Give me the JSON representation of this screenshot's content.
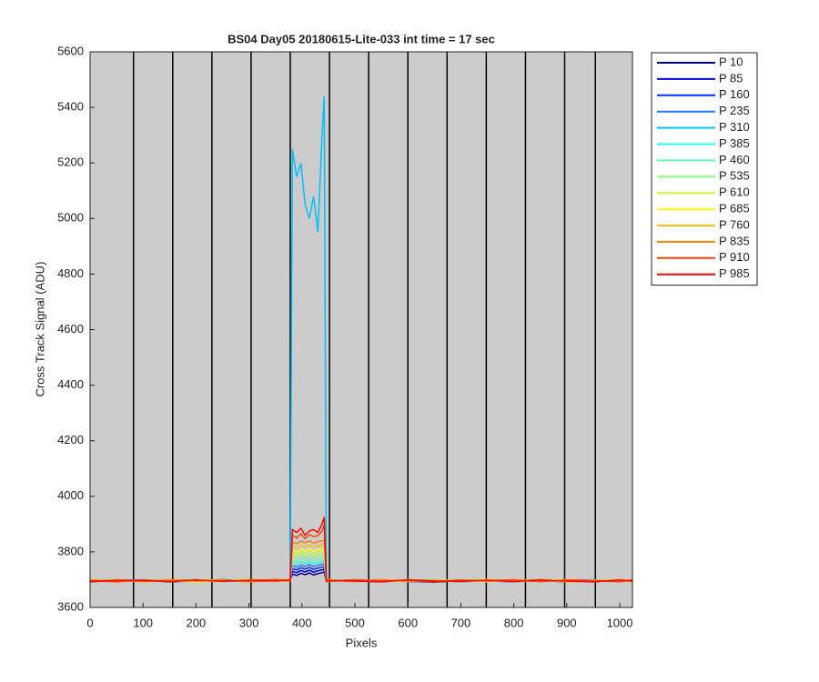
{
  "chart_data": {
    "type": "line",
    "title": "BS04 Day05 20180615-Lite-033 int time = 17 sec",
    "xlabel": "Pixels",
    "ylabel": "Cross Track Signal (ADU)",
    "x": [
      0,
      50,
      100,
      150,
      200,
      250,
      300,
      350,
      378,
      382,
      390,
      398,
      406,
      414,
      422,
      430,
      438,
      442,
      446,
      500,
      550,
      600,
      650,
      700,
      750,
      800,
      850,
      900,
      950,
      1000,
      1024
    ],
    "xlim": [
      0,
      1024
    ],
    "xticks": [
      0,
      100,
      200,
      300,
      400,
      500,
      600,
      700,
      800,
      900,
      1000
    ],
    "ylim": [
      3600,
      5600
    ],
    "yticks": [
      3600,
      3800,
      4000,
      4200,
      4400,
      4600,
      4800,
      5000,
      5200,
      5400,
      5600
    ],
    "vertical_lines": [
      82,
      156,
      230,
      304,
      378,
      452,
      526,
      600,
      674,
      748,
      822,
      896,
      954
    ],
    "background": "#cccccc",
    "legend": "outside-right",
    "series": [
      {
        "name": "P 10",
        "color": "#00008f",
        "values": [
          3697,
          3694,
          3699,
          3692,
          3696,
          3700,
          3695,
          3698,
          3700,
          3720,
          3715,
          3723,
          3718,
          3724,
          3717,
          3722,
          3725,
          3728,
          3696,
          3693,
          3698,
          3695,
          3691,
          3697,
          3699,
          3694,
          3696,
          3692,
          3698,
          3695,
          3697
        ]
      },
      {
        "name": "P 85",
        "color": "#0000df",
        "values": [
          3695,
          3698,
          3693,
          3697,
          3700,
          3694,
          3699,
          3696,
          3698,
          3730,
          3725,
          3733,
          3728,
          3734,
          3727,
          3732,
          3735,
          3738,
          3694,
          3697,
          3692,
          3699,
          3696,
          3693,
          3698,
          3695,
          3700,
          3694,
          3696,
          3699,
          3693
        ]
      },
      {
        "name": "P 160",
        "color": "#0030ff",
        "values": [
          3699,
          3693,
          3697,
          3695,
          3692,
          3698,
          3694,
          3700,
          3697,
          3740,
          3735,
          3743,
          3738,
          3744,
          3737,
          3742,
          3745,
          3748,
          3698,
          3695,
          3699,
          3692,
          3697,
          3694,
          3696,
          3700,
          3693,
          3697,
          3694,
          3698,
          3696
        ]
      },
      {
        "name": "P 235",
        "color": "#1f78ff",
        "values": [
          3694,
          3697,
          3700,
          3693,
          3698,
          3695,
          3697,
          3693,
          3699,
          3750,
          3745,
          3753,
          3748,
          3754,
          3747,
          3752,
          3755,
          3758,
          3695,
          3700,
          3694,
          3697,
          3693,
          3699,
          3695,
          3692,
          3698,
          3696,
          3700,
          3694,
          3698
        ]
      },
      {
        "name": "P 310",
        "color": "#00bfff",
        "values": [
          3698,
          3695,
          3694,
          3699,
          3693,
          3697,
          3700,
          3696,
          3700,
          5250,
          5150,
          5200,
          5050,
          5000,
          5080,
          4950,
          5300,
          5440,
          3697,
          3694,
          3696,
          3700,
          3698,
          3692,
          3697,
          3696,
          3694,
          3699,
          3693,
          3697,
          3695
        ]
      },
      {
        "name": "P 385",
        "color": "#20ffee",
        "values": [
          3696,
          3700,
          3695,
          3694,
          3699,
          3692,
          3696,
          3699,
          3696,
          3760,
          3755,
          3763,
          3758,
          3764,
          3757,
          3762,
          3765,
          3768,
          3693,
          3698,
          3697,
          3694,
          3700,
          3695,
          3693,
          3698,
          3697,
          3695,
          3699,
          3693,
          3696
        ]
      },
      {
        "name": "P 460",
        "color": "#60ffb0",
        "values": [
          3693,
          3696,
          3698,
          3700,
          3694,
          3697,
          3693,
          3695,
          3698,
          3770,
          3765,
          3773,
          3768,
          3774,
          3767,
          3772,
          3775,
          3778,
          3699,
          3696,
          3693,
          3698,
          3694,
          3700,
          3696,
          3694,
          3699,
          3693,
          3697,
          3700,
          3694
        ]
      },
      {
        "name": "P 535",
        "color": "#90ff70",
        "values": [
          3700,
          3692,
          3696,
          3698,
          3697,
          3693,
          3699,
          3694,
          3697,
          3785,
          3780,
          3788,
          3783,
          3789,
          3782,
          3787,
          3790,
          3793,
          3696,
          3692,
          3700,
          3696,
          3697,
          3694,
          3699,
          3697,
          3692,
          3698,
          3695,
          3693,
          3699
        ]
      },
      {
        "name": "P 610",
        "color": "#c8ff30",
        "values": [
          3695,
          3699,
          3692,
          3696,
          3700,
          3698,
          3694,
          3697,
          3699,
          3795,
          3790,
          3798,
          3793,
          3799,
          3792,
          3797,
          3800,
          3803,
          3694,
          3699,
          3695,
          3693,
          3699,
          3697,
          3692,
          3700,
          3696,
          3694,
          3698,
          3696,
          3692
        ]
      },
      {
        "name": "P 685",
        "color": "#ffff00",
        "values": [
          3697,
          3693,
          3698,
          3695,
          3692,
          3696,
          3700,
          3693,
          3696,
          3805,
          3800,
          3808,
          3803,
          3809,
          3802,
          3807,
          3810,
          3813,
          3700,
          3694,
          3697,
          3699,
          3693,
          3696,
          3700,
          3693,
          3698,
          3700,
          3694,
          3697,
          3698
        ]
      },
      {
        "name": "P 760",
        "color": "#ffc000",
        "values": [
          3694,
          3700,
          3695,
          3697,
          3698,
          3693,
          3696,
          3699,
          3700,
          3820,
          3815,
          3823,
          3818,
          3824,
          3817,
          3822,
          3825,
          3828,
          3695,
          3697,
          3693,
          3700,
          3696,
          3698,
          3694,
          3695,
          3700,
          3692,
          3696,
          3699,
          3694
        ]
      },
      {
        "name": "P 835",
        "color": "#ff8000",
        "values": [
          3699,
          3696,
          3693,
          3700,
          3695,
          3699,
          3692,
          3697,
          3695,
          3835,
          3830,
          3838,
          3833,
          3839,
          3832,
          3837,
          3840,
          3843,
          3697,
          3693,
          3700,
          3694,
          3698,
          3693,
          3697,
          3699,
          3695,
          3697,
          3693,
          3700,
          3696
        ]
      },
      {
        "name": "P 910",
        "color": "#ff4000",
        "values": [
          3696,
          3692,
          3699,
          3694,
          3697,
          3695,
          3698,
          3700,
          3697,
          3860,
          3850,
          3865,
          3848,
          3862,
          3855,
          3858,
          3875,
          3895,
          3693,
          3699,
          3696,
          3697,
          3692,
          3699,
          3695,
          3698,
          3693,
          3699,
          3697,
          3692,
          3700
        ]
      },
      {
        "name": "P 985",
        "color": "#ff0000",
        "values": [
          3692,
          3698,
          3696,
          3693,
          3699,
          3694,
          3697,
          3695,
          3698,
          3880,
          3870,
          3885,
          3860,
          3875,
          3880,
          3870,
          3900,
          3925,
          3698,
          3695,
          3692,
          3699,
          3695,
          3694,
          3698,
          3693,
          3699,
          3695,
          3692,
          3698,
          3694
        ]
      }
    ]
  }
}
